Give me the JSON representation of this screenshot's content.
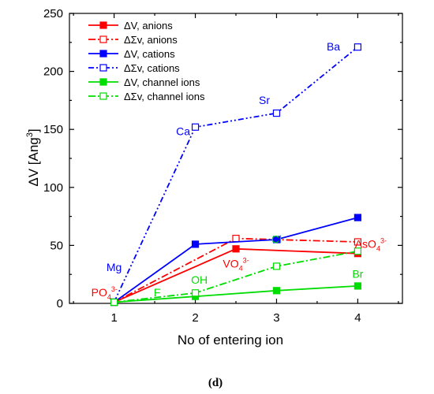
{
  "chart_data": {
    "type": "line",
    "xlabel": "No of entering ion",
    "ylabel_main": "ΔV [Ang",
    "ylabel_sup": "3",
    "ylabel_end": "]",
    "xlim": [
      0.45,
      4.55
    ],
    "ylim": [
      0,
      250
    ],
    "xticks": [
      1,
      2,
      3,
      4
    ],
    "yticks": [
      0,
      50,
      100,
      150,
      200,
      250
    ],
    "legend_position": "top-left",
    "caption": "(d)",
    "series": [
      {
        "name": "ΔV, anions",
        "color": "#ff0000",
        "dash": "solid",
        "marker": "filled",
        "x": [
          1,
          2.5,
          4
        ],
        "y": [
          1,
          47,
          43
        ]
      },
      {
        "name": "ΔΣv, anions",
        "color": "#ff0000",
        "dash": "dashdot",
        "marker": "open",
        "x": [
          1,
          2.5,
          4
        ],
        "y": [
          1,
          56,
          53
        ]
      },
      {
        "name": "ΔV, cations",
        "color": "#0000ff",
        "dash": "solid",
        "marker": "filled",
        "x": [
          1,
          2,
          3,
          4
        ],
        "y": [
          1,
          51,
          55,
          74
        ]
      },
      {
        "name": "ΔΣv, cations",
        "color": "#0000ff",
        "dash": "dashdotdot",
        "marker": "open",
        "x": [
          1,
          2,
          3,
          4
        ],
        "y": [
          1,
          152,
          164,
          221
        ]
      },
      {
        "name": "ΔV, channel ions",
        "color": "#00dd00",
        "dash": "solid",
        "marker": "filled",
        "x": [
          1,
          2,
          3,
          4
        ],
        "y": [
          1,
          6,
          11,
          15
        ]
      },
      {
        "name": "ΔΣv, channel ions",
        "color": "#00dd00",
        "dash": "dashdot",
        "marker": "open",
        "x": [
          1,
          2,
          3,
          4
        ],
        "y": [
          1,
          9,
          32,
          45
        ]
      }
    ],
    "annotations": [
      {
        "text": "Mg",
        "sub": "",
        "sup": "",
        "color": "#0000ff",
        "x": 1,
        "y": 28
      },
      {
        "text": "Ca",
        "sub": "",
        "sup": "",
        "color": "#0000ff",
        "x": 1.85,
        "y": 145
      },
      {
        "text": "Sr",
        "sub": "",
        "sup": "",
        "color": "#0000ff",
        "x": 2.85,
        "y": 172
      },
      {
        "text": "Ba",
        "sub": "",
        "sup": "",
        "color": "#0000ff",
        "x": 3.7,
        "y": 218
      },
      {
        "text": "PO",
        "sub": "4",
        "sup": "3-",
        "color": "#ff0000",
        "x": 0.88,
        "y": 6
      },
      {
        "text": "VO",
        "sub": "4",
        "sup": "3-",
        "color": "#ff0000",
        "x": 2.5,
        "y": 31
      },
      {
        "text": "AsO",
        "sub": "4",
        "sup": "3-",
        "color": "#ff0000",
        "x": 4.16,
        "y": 48
      },
      {
        "text": "F",
        "sub": "",
        "sup": "",
        "color": "#00dd00",
        "x": 1.53,
        "y": 6
      },
      {
        "text": "OH",
        "sub": "",
        "sup": "",
        "color": "#00dd00",
        "x": 2.05,
        "y": 17
      },
      {
        "text": "Cl",
        "sub": "",
        "sup": "",
        "color": "#00dd00",
        "x": 3.0,
        "y": 52
      },
      {
        "text": "Br",
        "sub": "",
        "sup": "",
        "color": "#00dd00",
        "x": 4.0,
        "y": 22
      }
    ]
  }
}
